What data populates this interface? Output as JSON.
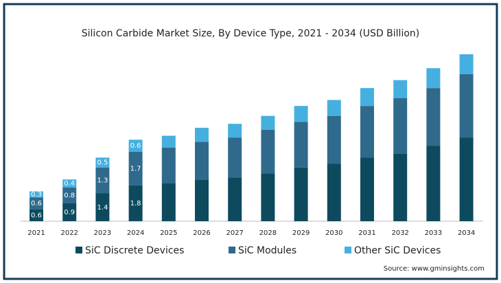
{
  "chart_data": {
    "type": "bar",
    "stacked": true,
    "title": "Silicon Carbide Market Size, By Device Type, 2021 - 2034 (USD Billion)",
    "categories": [
      "2021",
      "2022",
      "2023",
      "2024",
      "2025",
      "2026",
      "2027",
      "2028",
      "2029",
      "2030",
      "2031",
      "2032",
      "2033",
      "2034"
    ],
    "series": [
      {
        "name": "SiC Discrete Devices",
        "color": "#0d4a5e",
        "values": [
          0.6,
          0.9,
          1.4,
          1.8,
          1.9,
          2.1,
          2.2,
          2.4,
          2.7,
          2.9,
          3.2,
          3.4,
          3.8,
          4.2
        ],
        "value_labels": [
          "0.6",
          "0.9",
          "1.4",
          "1.8",
          null,
          null,
          null,
          null,
          null,
          null,
          null,
          null,
          null,
          null
        ]
      },
      {
        "name": "SiC Modules",
        "color": "#2f6a8c",
        "values": [
          0.6,
          0.8,
          1.3,
          1.7,
          1.8,
          1.9,
          2.0,
          2.2,
          2.3,
          2.4,
          2.6,
          2.8,
          2.9,
          3.2
        ],
        "value_labels": [
          "0.6",
          "0.8",
          "1.3",
          "1.7",
          null,
          null,
          null,
          null,
          null,
          null,
          null,
          null,
          null,
          null
        ]
      },
      {
        "name": "Other SiC Devices",
        "color": "#45b0df",
        "values": [
          0.3,
          0.4,
          0.5,
          0.6,
          0.6,
          0.7,
          0.7,
          0.7,
          0.8,
          0.8,
          0.9,
          0.9,
          1.0,
          1.0
        ],
        "value_labels": [
          "0.3",
          "0.4",
          "0.5",
          "0.6",
          null,
          null,
          null,
          null,
          null,
          null,
          null,
          null,
          null,
          null
        ]
      }
    ],
    "source": "Source: www.gminsights.com"
  }
}
